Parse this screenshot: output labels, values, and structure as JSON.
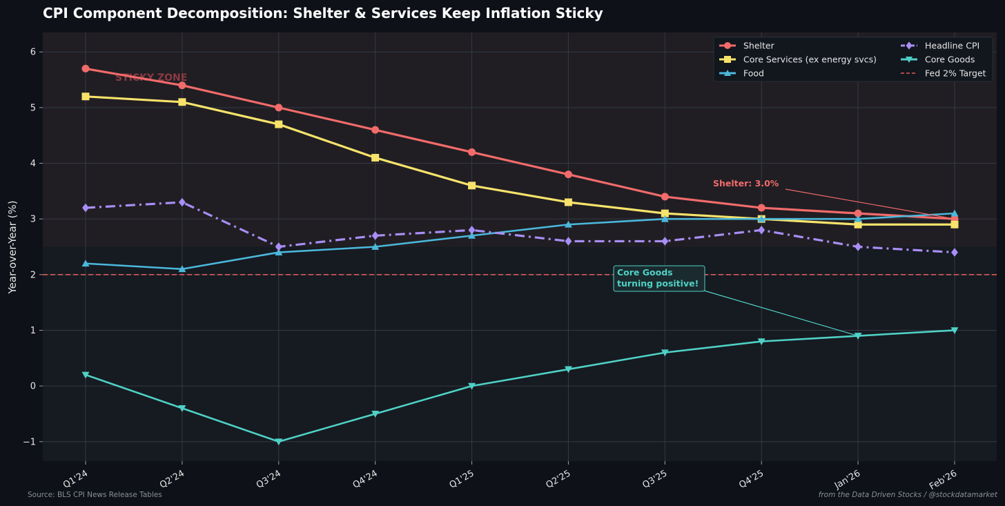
{
  "chart_data": {
    "type": "line",
    "title": "CPI Component Decomposition: Shelter & Services Keep Inflation Sticky",
    "xlabel": "",
    "ylabel": "Year-over-Year (%)",
    "categories": [
      "Q1'24",
      "Q2'24",
      "Q3'24",
      "Q4'24",
      "Q1'25",
      "Q2'25",
      "Q3'25",
      "Q4'25",
      "Jan'26",
      "Feb'26"
    ],
    "yticks": [
      "6",
      "5",
      "4",
      "3",
      "2",
      "1",
      "0",
      "−1"
    ],
    "ylim": [
      -1.35,
      6.35
    ],
    "grid": true,
    "legend_position": "top-right",
    "series": [
      {
        "name": "Shelter",
        "color": "#f26b6b",
        "marker": "circle",
        "style": "solid",
        "values": [
          5.7,
          5.4,
          5.0,
          4.6,
          4.2,
          3.8,
          3.4,
          3.2,
          3.1,
          3.0
        ]
      },
      {
        "name": "Core Services (ex energy svcs)",
        "color": "#f7e36b",
        "marker": "square",
        "style": "solid",
        "values": [
          5.2,
          5.1,
          4.7,
          4.1,
          3.6,
          3.3,
          3.1,
          3.0,
          2.9,
          2.9
        ]
      },
      {
        "name": "Food",
        "color": "#4bb8db",
        "marker": "triangle-up",
        "style": "solid",
        "values": [
          2.2,
          2.1,
          2.4,
          2.5,
          2.7,
          2.9,
          3.0,
          3.0,
          3.0,
          3.1
        ]
      },
      {
        "name": "Headline CPI",
        "color": "#a98ef5",
        "marker": "diamond",
        "style": "dashdot",
        "values": [
          3.2,
          3.3,
          2.5,
          2.7,
          2.8,
          2.6,
          2.6,
          2.8,
          2.5,
          2.4
        ]
      },
      {
        "name": "Core Goods",
        "color": "#4fd1c5",
        "marker": "triangle-down",
        "style": "solid",
        "values": [
          0.2,
          -0.4,
          -1.0,
          -0.5,
          0.0,
          0.3,
          0.6,
          0.8,
          0.9,
          1.0
        ]
      }
    ],
    "reference_line": {
      "name": "Fed 2% Target",
      "value": 2.0,
      "color": "#e05a5a"
    },
    "shaded_band": {
      "label": "STICKY ZONE",
      "from": 2.5,
      "to": 6.35
    },
    "annotations": [
      {
        "text": "Shelter: 3.0%",
        "target_category": "Feb'26",
        "target_value": 3.0,
        "color": "#f26b6b"
      },
      {
        "lines": [
          "Core Goods",
          "turning positive!"
        ],
        "target_category": "Jan'26",
        "target_value": 0.9,
        "color": "#4fd1c5"
      }
    ]
  },
  "footer": {
    "source": "Source: BLS CPI News Release Tables",
    "credit": "from the Data Driven Stocks / @stockdatamarket"
  },
  "colors": {
    "background": "#0e1118",
    "plot_background": "#161a21",
    "sticky_band": "#201e23",
    "grid": "#343a44"
  }
}
